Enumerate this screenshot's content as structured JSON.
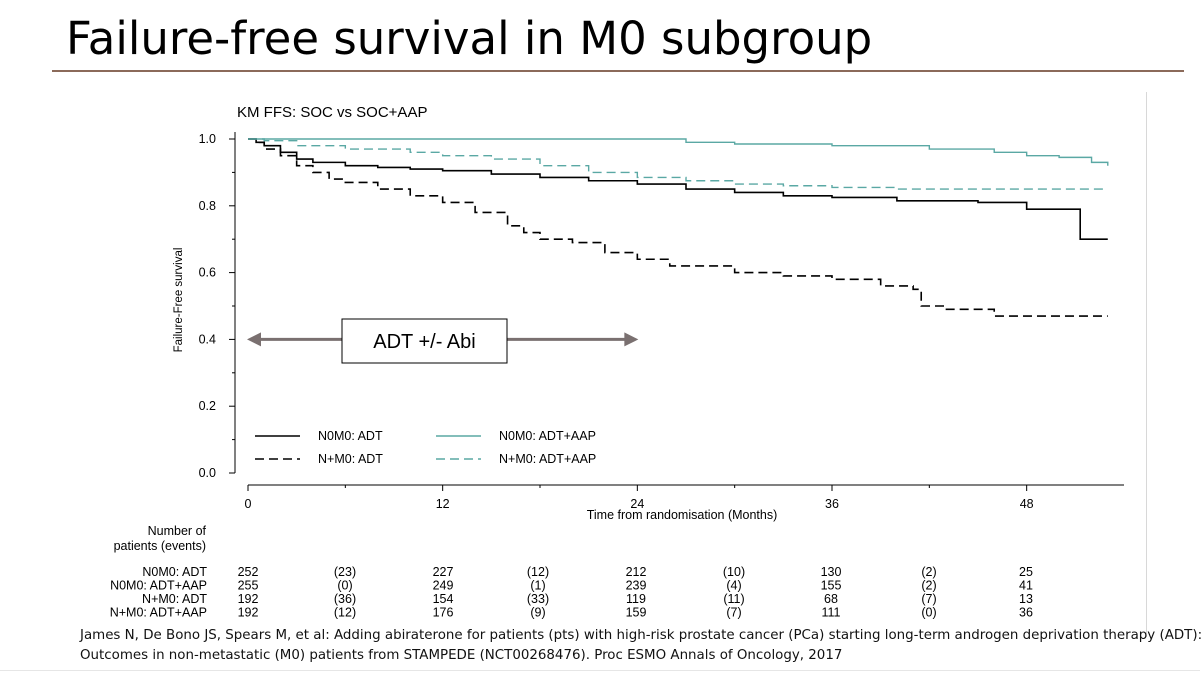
{
  "slide": {
    "title": "Failure-free survival in M0 subgroup",
    "citation_line1": "James N, De Bono JS, Spears M, et al: Adding abiraterone for patients (pts) with high-risk prostate cancer (PCa) starting long-term androgen deprivation therapy (ADT):",
    "citation_line2": "Outcomes in non-metastatic (M0) patients from STAMPEDE (NCT00268476). Proc ESMO Annals of Oncology, 2017"
  },
  "colors": {
    "teal": "#5aa8a4",
    "black": "#000000",
    "arrow": "#7a7070",
    "rule": "#8b6a5a"
  },
  "chart_data": {
    "type": "line",
    "title": "KM FFS: SOC vs SOC+AAP",
    "xlabel": "Time from randomisation (Months)",
    "ylabel": "Failure-Free survival",
    "xlim": [
      0,
      54
    ],
    "ylim": [
      0,
      1.0
    ],
    "x_ticks": [
      0,
      12,
      24,
      36,
      48
    ],
    "x_tick_labels": [
      "0",
      "12",
      "24",
      "36",
      "48"
    ],
    "y_ticks": [
      0.0,
      0.2,
      0.4,
      0.6,
      0.8,
      1.0
    ],
    "y_tick_labels": [
      "0.0",
      "0.2",
      "0.4",
      "0.6",
      "0.8",
      "1.0"
    ],
    "series": [
      {
        "name": "N0M0: ADT",
        "color": "#000000",
        "dash": "solid",
        "x": [
          0,
          0.5,
          1,
          2,
          3,
          4,
          6,
          8,
          10,
          12,
          15,
          18,
          21,
          24,
          27,
          30,
          33,
          36,
          40,
          45,
          48,
          51,
          51.3,
          53
        ],
        "y": [
          1.0,
          0.99,
          0.98,
          0.96,
          0.94,
          0.93,
          0.92,
          0.915,
          0.91,
          0.905,
          0.895,
          0.885,
          0.875,
          0.865,
          0.85,
          0.84,
          0.83,
          0.825,
          0.815,
          0.81,
          0.79,
          0.79,
          0.7,
          0.7
        ]
      },
      {
        "name": "N0M0: ADT+AAP",
        "color": "#5aa8a4",
        "dash": "solid",
        "x": [
          0,
          3,
          12,
          24,
          27,
          30,
          36,
          42,
          46,
          48,
          50,
          52,
          53
        ],
        "y": [
          1.0,
          1.0,
          1.0,
          1.0,
          0.99,
          0.985,
          0.98,
          0.97,
          0.96,
          0.95,
          0.945,
          0.93,
          0.92
        ]
      },
      {
        "name": "N+M0: ADT",
        "color": "#000000",
        "dash": "dashed",
        "x": [
          0,
          0.5,
          1,
          2,
          3,
          4,
          5,
          6,
          8,
          10,
          12,
          14,
          16,
          17,
          18,
          20,
          22,
          24,
          26,
          30,
          33,
          36,
          39,
          41,
          41.5,
          43,
          45,
          46,
          53
        ],
        "y": [
          1.0,
          0.99,
          0.97,
          0.95,
          0.92,
          0.9,
          0.88,
          0.87,
          0.85,
          0.83,
          0.81,
          0.78,
          0.74,
          0.72,
          0.7,
          0.69,
          0.66,
          0.64,
          0.62,
          0.6,
          0.59,
          0.58,
          0.56,
          0.55,
          0.5,
          0.49,
          0.49,
          0.47,
          0.47
        ]
      },
      {
        "name": "N+M0: ADT+AAP",
        "color": "#5aa8a4",
        "dash": "dashed",
        "x": [
          0,
          1,
          3,
          6,
          10,
          12,
          15,
          18,
          21,
          24,
          27,
          30,
          33,
          36,
          40,
          45,
          50,
          53
        ],
        "y": [
          1.0,
          0.995,
          0.98,
          0.97,
          0.96,
          0.95,
          0.94,
          0.92,
          0.9,
          0.885,
          0.875,
          0.865,
          0.86,
          0.855,
          0.85,
          0.85,
          0.85,
          0.85
        ]
      }
    ],
    "legend": {
      "position": "bottom-left-inside",
      "entries": [
        "N0M0: ADT",
        "N0M0: ADT+AAP",
        "N+M0: ADT",
        "N+M0: ADT+AAP"
      ]
    },
    "annotation": {
      "text": "ADT +/- Abi",
      "arrow_from_month": 0,
      "arrow_to_month": 24,
      "y": 0.4
    },
    "risk_table": {
      "header_line1": "Number of",
      "header_line2": "patients (events)",
      "rows": [
        {
          "label": "N0M0: ADT",
          "cells": [
            "252",
            "(23)",
            "227",
            "(12)",
            "212",
            "(10)",
            "130",
            "(2)",
            "25"
          ]
        },
        {
          "label": "N0M0: ADT+AAP",
          "cells": [
            "255",
            "(0)",
            "249",
            "(1)",
            "239",
            "(4)",
            "155",
            "(2)",
            "41"
          ]
        },
        {
          "label": "N+M0: ADT",
          "cells": [
            "192",
            "(36)",
            "154",
            "(33)",
            "119",
            "(11)",
            "68",
            "(7)",
            "13"
          ]
        },
        {
          "label": "N+M0: ADT+AAP",
          "cells": [
            "192",
            "(12)",
            "176",
            "(9)",
            "159",
            "(7)",
            "111",
            "(0)",
            "36"
          ]
        }
      ]
    }
  }
}
